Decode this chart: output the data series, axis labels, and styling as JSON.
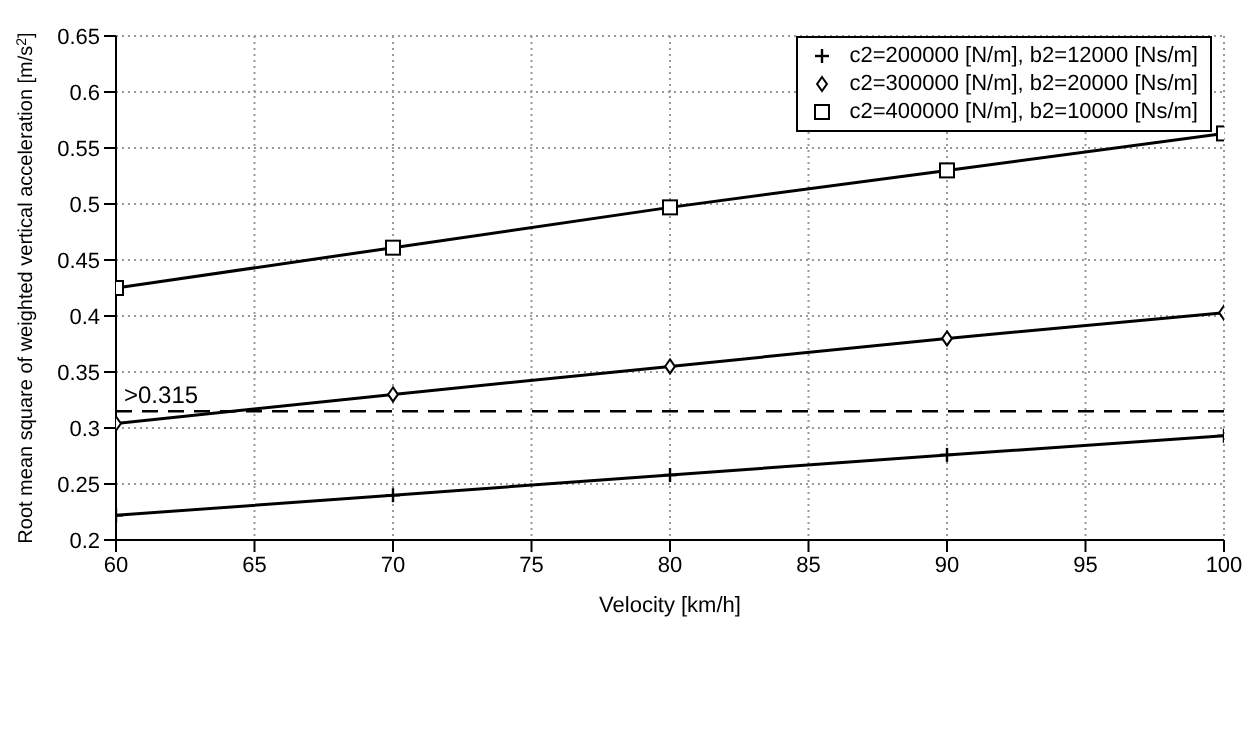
{
  "chart_data": {
    "type": "line",
    "xlabel": "Velocity [km/h]",
    "ylabel": "Root mean square of weighted vertical acceleration [m/s$^{2}$]",
    "x": [
      60,
      70,
      80,
      90,
      100
    ],
    "series": [
      {
        "name": "c2=200000 [N/m], b2=12000 [Ns/m]",
        "color": "#000000",
        "marker": "cross",
        "values": [
          0.222,
          0.24,
          0.258,
          0.276,
          0.293
        ]
      },
      {
        "name": "c2=300000 [N/m], b2=20000 [Ns/m]",
        "color": "#000000",
        "marker": "diamond",
        "values": [
          0.304,
          0.33,
          0.355,
          0.38,
          0.403
        ]
      },
      {
        "name": "c2=400000 [N/m], b2=10000 [Ns/m]",
        "color": "#000000",
        "marker": "square",
        "values": [
          0.425,
          0.461,
          0.497,
          0.53,
          0.563
        ]
      }
    ],
    "xlim": [
      60,
      100
    ],
    "xticks": [
      60,
      65,
      70,
      75,
      80,
      85,
      90,
      95,
      100
    ],
    "ylim": [
      0.2,
      0.65
    ],
    "yticks": [
      0.2,
      0.25,
      0.3,
      0.35,
      0.4,
      0.45,
      0.5,
      0.55,
      0.6,
      0.65
    ],
    "ref_lines": [
      {
        "axis": "y",
        "value": 0.315,
        "label": ">0.315",
        "color": "#000000",
        "line_style": "dashed"
      }
    ],
    "grid": true,
    "legend": "top right",
    "line_style": "solid"
  }
}
